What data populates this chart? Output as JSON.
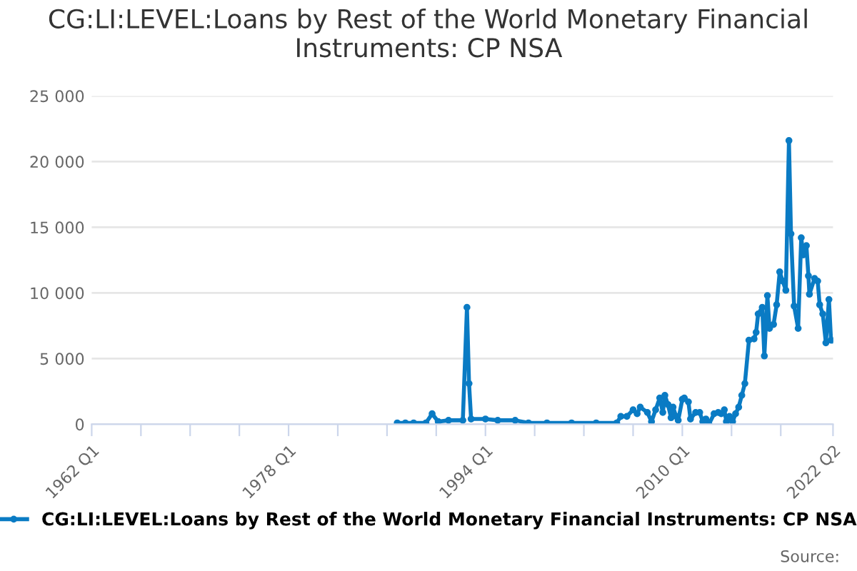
{
  "chart_data": {
    "type": "line",
    "title": "CG:LI:LEVEL:Loans by Rest of the World Monetary Financial Instruments: CP NSA",
    "x": [
      "1986-11",
      "1987-07",
      "1988-03",
      "1989-03",
      "1989-09",
      "1990-03",
      "1991-01",
      "1992-03",
      "1992-07",
      "1992-09",
      "1992-11",
      "1994-01",
      "1995-01",
      "1996-06",
      "1997-07",
      "1999-01",
      "2001-01",
      "2003-01",
      "2004-09",
      "2005-01",
      "2005-07",
      "2006-01",
      "2006-05",
      "2006-08",
      "2007-03",
      "2007-07",
      "2007-11",
      "2008-03",
      "2008-06",
      "2008-08",
      "2008-11",
      "2009-02",
      "2009-04",
      "2009-07",
      "2009-09",
      "2010-01",
      "2010-03",
      "2010-07",
      "2010-09",
      "2011-02",
      "2011-06",
      "2011-09",
      "2011-12",
      "2012-03",
      "2012-08",
      "2012-12",
      "2013-03",
      "2013-06",
      "2013-08",
      "2013-11",
      "2014-02",
      "2014-05",
      "2014-08",
      "2014-11",
      "2015-02",
      "2015-06",
      "2015-11",
      "2016-01",
      "2016-03",
      "2016-07",
      "2016-09",
      "2016-12",
      "2017-02",
      "2017-06",
      "2017-09",
      "2017-12",
      "2018-03",
      "2018-06",
      "2018-09",
      "2018-11",
      "2019-02",
      "2019-06",
      "2019-09",
      "2019-11",
      "2020-02",
      "2020-04",
      "2020-05",
      "2020-10",
      "2021-01",
      "2021-03",
      "2021-06",
      "2021-09",
      "2021-12",
      "2022-02",
      "2022-04"
    ],
    "series": [
      {
        "name": "CG:LI:LEVEL:Loans by Rest of the World Monetary Financial Instruments: CP NSA",
        "color": "#0a7bc4",
        "values": [
          100,
          100,
          100,
          100,
          800,
          200,
          300,
          300,
          8900,
          3100,
          400,
          400,
          300,
          300,
          100,
          100,
          100,
          100,
          100,
          600,
          600,
          1100,
          800,
          1300,
          900,
          200,
          1100,
          2000,
          900,
          2200,
          1500,
          500,
          1300,
          600,
          300,
          1900,
          2000,
          1700,
          400,
          900,
          900,
          200,
          400,
          0,
          800,
          900,
          800,
          1100,
          200,
          600,
          200,
          800,
          1300,
          2200,
          3100,
          6400,
          6500,
          7000,
          8400,
          8900,
          5200,
          9800,
          7300,
          7600,
          9100,
          11600,
          10900,
          10200,
          21600,
          14500,
          9000,
          7300,
          14200,
          12900,
          13600,
          11300,
          9900,
          11100,
          10900,
          9100,
          8400,
          6200,
          9500,
          6400,
          6400
        ]
      }
    ],
    "xlim": [
      "1962-01",
      "2022-04"
    ],
    "xticks": [
      {
        "value": "1962-01",
        "label": "1962 Q1"
      },
      {
        "value": "1966-01",
        "label": null
      },
      {
        "value": "1970-01",
        "label": null
      },
      {
        "value": "1974-01",
        "label": null
      },
      {
        "value": "1978-01",
        "label": "1978 Q1"
      },
      {
        "value": "1982-01",
        "label": null
      },
      {
        "value": "1986-01",
        "label": null
      },
      {
        "value": "1990-01",
        "label": null
      },
      {
        "value": "1994-01",
        "label": "1994 Q1"
      },
      {
        "value": "1998-01",
        "label": null
      },
      {
        "value": "2002-01",
        "label": null
      },
      {
        "value": "2006-01",
        "label": null
      },
      {
        "value": "2010-01",
        "label": "2010 Q1"
      },
      {
        "value": "2014-01",
        "label": null
      },
      {
        "value": "2018-01",
        "label": null
      },
      {
        "value": "2022-04",
        "label": "2022 Q2"
      }
    ],
    "ylim": [
      0,
      25000
    ],
    "yticks": [
      {
        "value": 0,
        "label": "0"
      },
      {
        "value": 5000,
        "label": "5 000"
      },
      {
        "value": 10000,
        "label": "10 000"
      },
      {
        "value": 15000,
        "label": "15 000"
      },
      {
        "value": 20000,
        "label": "20 000"
      },
      {
        "value": 25000,
        "label": "25 000"
      }
    ],
    "grid": "y",
    "legend": "bottom",
    "marker": "circle",
    "line_style": "solid",
    "annotations": [
      "Source:"
    ]
  }
}
